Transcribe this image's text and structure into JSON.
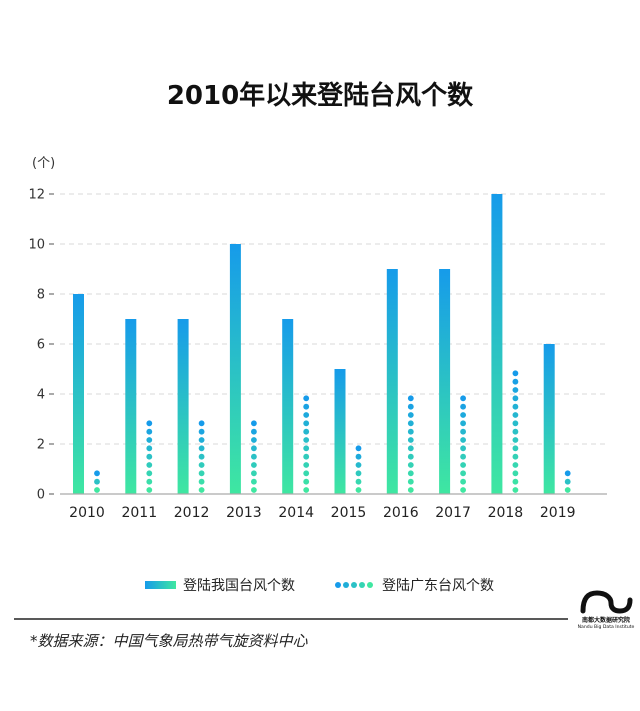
{
  "chart_data": {
    "type": "bar",
    "title": "2010年以来登陆台风个数",
    "ylabel": "(个)",
    "categories": [
      "2010",
      "2011",
      "2012",
      "2013",
      "2014",
      "2015",
      "2016",
      "2017",
      "2018",
      "2019"
    ],
    "yticks": [
      0,
      2,
      4,
      6,
      8,
      10,
      12
    ],
    "ylim": [
      0,
      12
    ],
    "grid": true,
    "legend_position": "bottom",
    "series": [
      {
        "name": "登陆我国台风个数",
        "mark": "bar",
        "values": [
          8,
          7,
          7,
          10,
          7,
          5,
          9,
          9,
          12,
          6
        ]
      },
      {
        "name": "登陆广东台风个数",
        "mark": "dots",
        "values": [
          1,
          3,
          3,
          3,
          4,
          2,
          4,
          4,
          5,
          1
        ]
      }
    ]
  },
  "source": "*数据来源：中国气象局热带气旋资料中心",
  "logo": {
    "name_cn": "南都大数据研究院",
    "name_en": "Nandu Big Data Institute"
  },
  "colors": {
    "series_top": "#169bea",
    "series_bottom": "#3fe7a1",
    "text": "#1a1a1a"
  }
}
